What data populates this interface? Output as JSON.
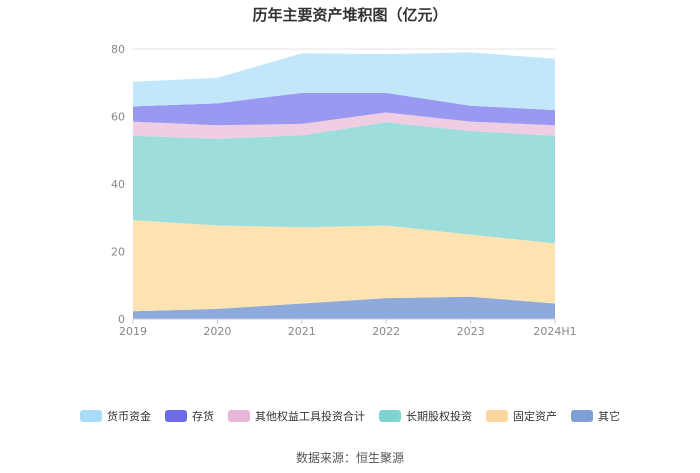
{
  "chart_data": {
    "type": "area",
    "stacked": true,
    "title": "历年主要资产堆积图（亿元）",
    "x": [
      "2019",
      "2020",
      "2021",
      "2022",
      "2023",
      "2024H1"
    ],
    "ylim": [
      0,
      80
    ],
    "yticks": [
      0,
      20,
      40,
      60,
      80
    ],
    "grid": true,
    "legend_position": "bottom",
    "series": [
      {
        "name": "其它",
        "color": "#8eaadb",
        "values": [
          2.3,
          3.0,
          4.6,
          6.2,
          6.6,
          4.6
        ]
      },
      {
        "name": "固定资产",
        "color": "#fde3b1",
        "values": [
          27.0,
          24.7,
          22.6,
          21.5,
          18.4,
          17.8
        ]
      },
      {
        "name": "长期股权投资",
        "color": "#9ddedc",
        "values": [
          25.0,
          25.7,
          27.2,
          30.6,
          30.7,
          31.9
        ]
      },
      {
        "name": "其他权益工具投资合计",
        "color": "#efcde3",
        "values": [
          4.2,
          4.0,
          3.4,
          2.9,
          2.8,
          3.1
        ]
      },
      {
        "name": "存货",
        "color": "#9a99f2",
        "values": [
          4.5,
          6.5,
          9.2,
          5.8,
          4.7,
          4.5
        ]
      },
      {
        "name": "货币资金",
        "color": "#c2e7fb",
        "values": [
          7.3,
          7.6,
          11.7,
          11.5,
          15.8,
          15.2
        ]
      }
    ],
    "legend_order": [
      "货币资金",
      "存货",
      "其他权益工具投资合计",
      "长期股权投资",
      "固定资产",
      "其它"
    ],
    "legend_colors": {
      "货币资金": "#a9dcf8",
      "存货": "#6c6ce9",
      "其他权益工具投资合计": "#e8b7d7",
      "长期股权投资": "#7fd4d1",
      "固定资产": "#fcd8a0",
      "其它": "#7f9fd6"
    },
    "source": "数据来源：恒生聚源"
  }
}
